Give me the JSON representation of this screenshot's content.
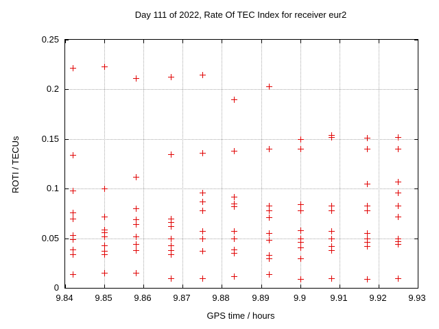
{
  "page": {
    "background_color": "#ffffff",
    "text_color": "#000000"
  },
  "chart_data": {
    "type": "scatter",
    "title": "Day 111 of 2022, Rate Of TEC Index for receiver eur2",
    "xlabel": "GPS time / hours",
    "ylabel": "ROTI / TECUs",
    "xlim": [
      9.84,
      9.93
    ],
    "ylim": [
      0,
      0.25
    ],
    "x_ticks": [
      9.84,
      9.85,
      9.86,
      9.87,
      9.88,
      9.89,
      9.9,
      9.91,
      9.92,
      9.93
    ],
    "x_tick_labels": [
      "9.84",
      "9.85",
      "9.86",
      "9.87",
      "9.88",
      "9.89",
      "9.9",
      "9.91",
      "9.92",
      "9.93"
    ],
    "y_ticks": [
      0,
      0.05,
      0.1,
      0.15,
      0.2,
      0.25
    ],
    "y_tick_labels": [
      "0",
      "0.05",
      "0.1",
      "0.15",
      "0.2",
      "0.25"
    ],
    "grid": true,
    "grid_style": "dotted",
    "grid_color": "#a8a8a8",
    "border_color": "#000000",
    "legend": "none",
    "marker": {
      "shape": "plus",
      "color": "#e00000",
      "size": 9
    },
    "series": [
      {
        "name": "ROTI",
        "points": [
          [
            9.842,
            0.222
          ],
          [
            9.842,
            0.134
          ],
          [
            9.842,
            0.098
          ],
          [
            9.842,
            0.076
          ],
          [
            9.842,
            0.07
          ],
          [
            9.842,
            0.053
          ],
          [
            9.842,
            0.049
          ],
          [
            9.842,
            0.039
          ],
          [
            9.842,
            0.034
          ],
          [
            9.842,
            0.014
          ],
          [
            9.85,
            0.223
          ],
          [
            9.85,
            0.1
          ],
          [
            9.85,
            0.072
          ],
          [
            9.85,
            0.059
          ],
          [
            9.85,
            0.056
          ],
          [
            9.85,
            0.052
          ],
          [
            9.85,
            0.043
          ],
          [
            9.85,
            0.037
          ],
          [
            9.85,
            0.034
          ],
          [
            9.85,
            0.015
          ],
          [
            9.858,
            0.211
          ],
          [
            9.858,
            0.112
          ],
          [
            9.858,
            0.08
          ],
          [
            9.858,
            0.069
          ],
          [
            9.858,
            0.064
          ],
          [
            9.858,
            0.052
          ],
          [
            9.858,
            0.044
          ],
          [
            9.858,
            0.038
          ],
          [
            9.858,
            0.015
          ],
          [
            9.867,
            0.213
          ],
          [
            9.867,
            0.135
          ],
          [
            9.867,
            0.07
          ],
          [
            9.867,
            0.066
          ],
          [
            9.867,
            0.062
          ],
          [
            9.867,
            0.05
          ],
          [
            9.867,
            0.043
          ],
          [
            9.867,
            0.038
          ],
          [
            9.867,
            0.034
          ],
          [
            9.867,
            0.01
          ],
          [
            9.875,
            0.215
          ],
          [
            9.875,
            0.136
          ],
          [
            9.875,
            0.096
          ],
          [
            9.875,
            0.087
          ],
          [
            9.875,
            0.078
          ],
          [
            9.875,
            0.057
          ],
          [
            9.875,
            0.05
          ],
          [
            9.875,
            0.037
          ],
          [
            9.875,
            0.01
          ],
          [
            9.883,
            0.19
          ],
          [
            9.883,
            0.138
          ],
          [
            9.883,
            0.092
          ],
          [
            9.883,
            0.085
          ],
          [
            9.883,
            0.082
          ],
          [
            9.883,
            0.057
          ],
          [
            9.883,
            0.05
          ],
          [
            9.883,
            0.039
          ],
          [
            9.883,
            0.035
          ],
          [
            9.883,
            0.012
          ],
          [
            9.892,
            0.203
          ],
          [
            9.892,
            0.14
          ],
          [
            9.892,
            0.083
          ],
          [
            9.892,
            0.078
          ],
          [
            9.892,
            0.071
          ],
          [
            9.892,
            0.055
          ],
          [
            9.892,
            0.048
          ],
          [
            9.892,
            0.033
          ],
          [
            9.892,
            0.03
          ],
          [
            9.892,
            0.014
          ],
          [
            9.9,
            0.15
          ],
          [
            9.9,
            0.14
          ],
          [
            9.9,
            0.084
          ],
          [
            9.9,
            0.078
          ],
          [
            9.9,
            0.058
          ],
          [
            9.9,
            0.05
          ],
          [
            9.9,
            0.046
          ],
          [
            9.9,
            0.041
          ],
          [
            9.9,
            0.03
          ],
          [
            9.9,
            0.009
          ],
          [
            9.908,
            0.154
          ],
          [
            9.908,
            0.152
          ],
          [
            9.908,
            0.083
          ],
          [
            9.908,
            0.078
          ],
          [
            9.908,
            0.057
          ],
          [
            9.908,
            0.05
          ],
          [
            9.908,
            0.042
          ],
          [
            9.908,
            0.038
          ],
          [
            9.908,
            0.01
          ],
          [
            9.917,
            0.151
          ],
          [
            9.917,
            0.14
          ],
          [
            9.917,
            0.105
          ],
          [
            9.917,
            0.083
          ],
          [
            9.917,
            0.078
          ],
          [
            9.917,
            0.055
          ],
          [
            9.917,
            0.05
          ],
          [
            9.917,
            0.046
          ],
          [
            9.917,
            0.042
          ],
          [
            9.917,
            0.009
          ],
          [
            9.925,
            0.152
          ],
          [
            9.925,
            0.14
          ],
          [
            9.925,
            0.107
          ],
          [
            9.925,
            0.096
          ],
          [
            9.925,
            0.083
          ],
          [
            9.925,
            0.072
          ],
          [
            9.925,
            0.05
          ],
          [
            9.925,
            0.047
          ],
          [
            9.925,
            0.044
          ],
          [
            9.925,
            0.01
          ]
        ]
      }
    ]
  }
}
